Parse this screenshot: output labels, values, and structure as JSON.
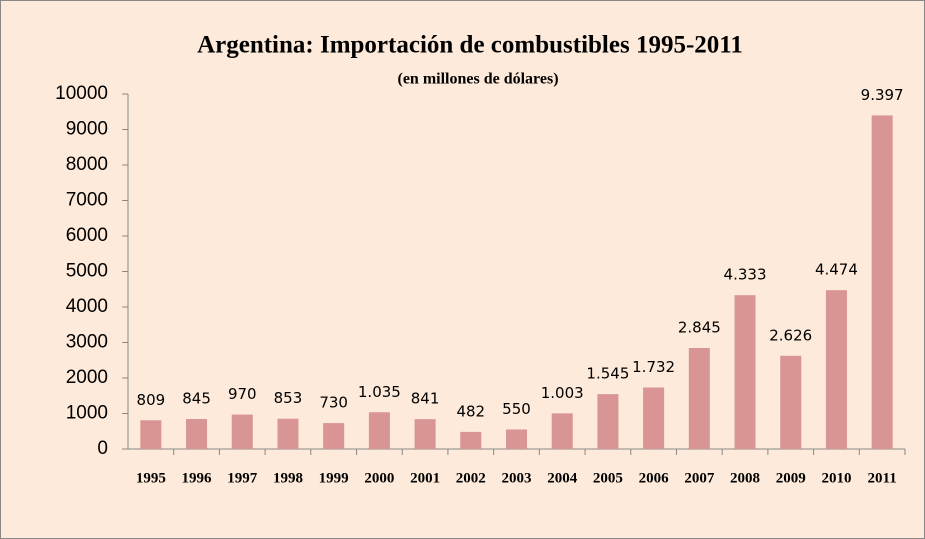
{
  "chart_data": {
    "type": "bar",
    "title": "Argentina: Importación de combustibles 1995-2011",
    "subtitle": "(en millones de dólares)",
    "categories": [
      "1995",
      "1996",
      "1997",
      "1998",
      "1999",
      "2000",
      "2001",
      "2002",
      "2003",
      "2004",
      "2005",
      "2006",
      "2007",
      "2008",
      "2009",
      "2010",
      "2011"
    ],
    "values": [
      809,
      845,
      970,
      853,
      730,
      1035,
      841,
      482,
      550,
      1003,
      1545,
      1732,
      2845,
      4333,
      2626,
      4474,
      9397
    ],
    "value_labels": [
      "809",
      "845",
      "970",
      "853",
      "730",
      "1.035",
      "841",
      "482",
      "550",
      "1.003",
      "1.545",
      "1.732",
      "2.845",
      "4.333",
      "2.626",
      "4.474",
      "9.397"
    ],
    "color": "#d99594",
    "ylim": [
      0,
      10000
    ],
    "yticks": [
      0,
      1000,
      2000,
      3000,
      4000,
      5000,
      6000,
      7000,
      8000,
      9000,
      10000
    ],
    "grid": false
  }
}
